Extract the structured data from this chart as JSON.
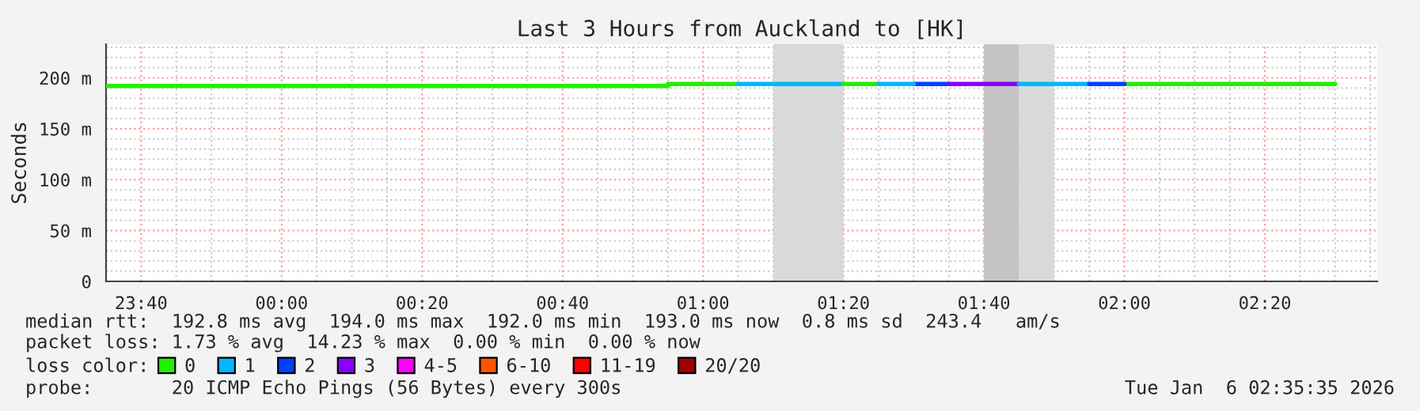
{
  "chart_data": {
    "type": "line",
    "title": "Last 3 Hours from Auckland to [HK]",
    "ylabel": "Seconds",
    "xlim": [
      "2026-01-05T23:35",
      "2026-01-06T02:36"
    ],
    "ylim": [
      0,
      233
    ],
    "xticks": [
      {
        "value": "2026-01-05T23:40",
        "label": "23:40"
      },
      {
        "value": "2026-01-06T00:00",
        "label": "00:00"
      },
      {
        "value": "2026-01-06T00:20",
        "label": "00:20"
      },
      {
        "value": "2026-01-06T00:40",
        "label": "00:40"
      },
      {
        "value": "2026-01-06T01:00",
        "label": "01:00"
      },
      {
        "value": "2026-01-06T01:20",
        "label": "01:20"
      },
      {
        "value": "2026-01-06T01:40",
        "label": "01:40"
      },
      {
        "value": "2026-01-06T02:00",
        "label": "02:00"
      },
      {
        "value": "2026-01-06T02:20",
        "label": "02:20"
      }
    ],
    "yticks": [
      0,
      {
        "value": 50,
        "label": "50 m"
      },
      {
        "value": 100,
        "label": "100 m"
      },
      {
        "value": 150,
        "label": "150 m"
      },
      {
        "value": 200,
        "label": "200 m"
      }
    ],
    "grid": true,
    "legend": "bottom",
    "legend_title": "loss color:",
    "series": [
      {
        "name": "0",
        "color": "#22ee00",
        "x": [
          "2026-01-05T23:35",
          "2026-01-06T00:55",
          "2026-01-06T00:55",
          "2026-01-06T01:05"
        ],
        "values": [
          192,
          192,
          194,
          194
        ]
      },
      {
        "name": "1",
        "color": "#00b8ff",
        "x": [
          "2026-01-06T01:05",
          "2026-01-06T01:20"
        ],
        "values": [
          194,
          194
        ]
      },
      {
        "name": "2",
        "color": "#0040ff",
        "x": [
          "2026-01-06T01:30",
          "2026-01-06T01:35"
        ],
        "values": [
          194,
          194
        ]
      },
      {
        "name": "3",
        "color": "#8800ff",
        "x": [
          "2026-01-06T01:35",
          "2026-01-06T01:45"
        ],
        "values": [
          194,
          194
        ]
      },
      {
        "name": "4-5",
        "color": "#ff00ff"
      },
      {
        "name": "6-10",
        "color": "#ff5500"
      },
      {
        "name": "11-19",
        "color": "#ff0000"
      },
      {
        "name": "20/20",
        "color": "#a10000"
      },
      {
        "color": "#22ee00",
        "x": [
          "2026-01-06T01:20",
          "2026-01-06T01:25"
        ],
        "values": [
          194,
          194
        ]
      },
      {
        "color": "#22ee00",
        "x": [
          "2026-01-06T02:00",
          "2026-01-06T02:30"
        ],
        "values": [
          194,
          194
        ]
      },
      {
        "color": "#00b8ff",
        "x": [
          "2026-01-06T01:25",
          "2026-01-06T01:30"
        ],
        "values": [
          194,
          194
        ]
      },
      {
        "color": "#00b8ff",
        "x": [
          "2026-01-06T01:45",
          "2026-01-06T01:55"
        ],
        "values": [
          194,
          194
        ]
      },
      {
        "color": "#0040ff",
        "x": [
          "2026-01-06T01:55",
          "2026-01-06T02:00"
        ],
        "values": [
          194,
          194
        ]
      }
    ],
    "bands": [
      {
        "axis": "x",
        "from": "2026-01-06T01:10",
        "to": "2026-01-06T01:20",
        "color": "#d9d9d9"
      },
      {
        "axis": "x",
        "from": "2026-01-06T01:40",
        "to": "2026-01-06T01:45",
        "color": "#c4c4c4"
      },
      {
        "axis": "x",
        "from": "2026-01-06T01:45",
        "to": "2026-01-06T01:50",
        "color": "#d9d9d9"
      }
    ],
    "annotations": [
      "median rtt:  192.8 ms avg  194.0 ms max  192.0 ms min  193.0 ms now  0.8 ms sd  243.4   am/s",
      "packet loss: 1.73 % avg  14.23 % max  0.00 % min  0.00 % now",
      "probe:       20 ICMP Echo Pings (56 Bytes) every 300s",
      "Tue Jan  6 02:35:35 2026"
    ]
  }
}
